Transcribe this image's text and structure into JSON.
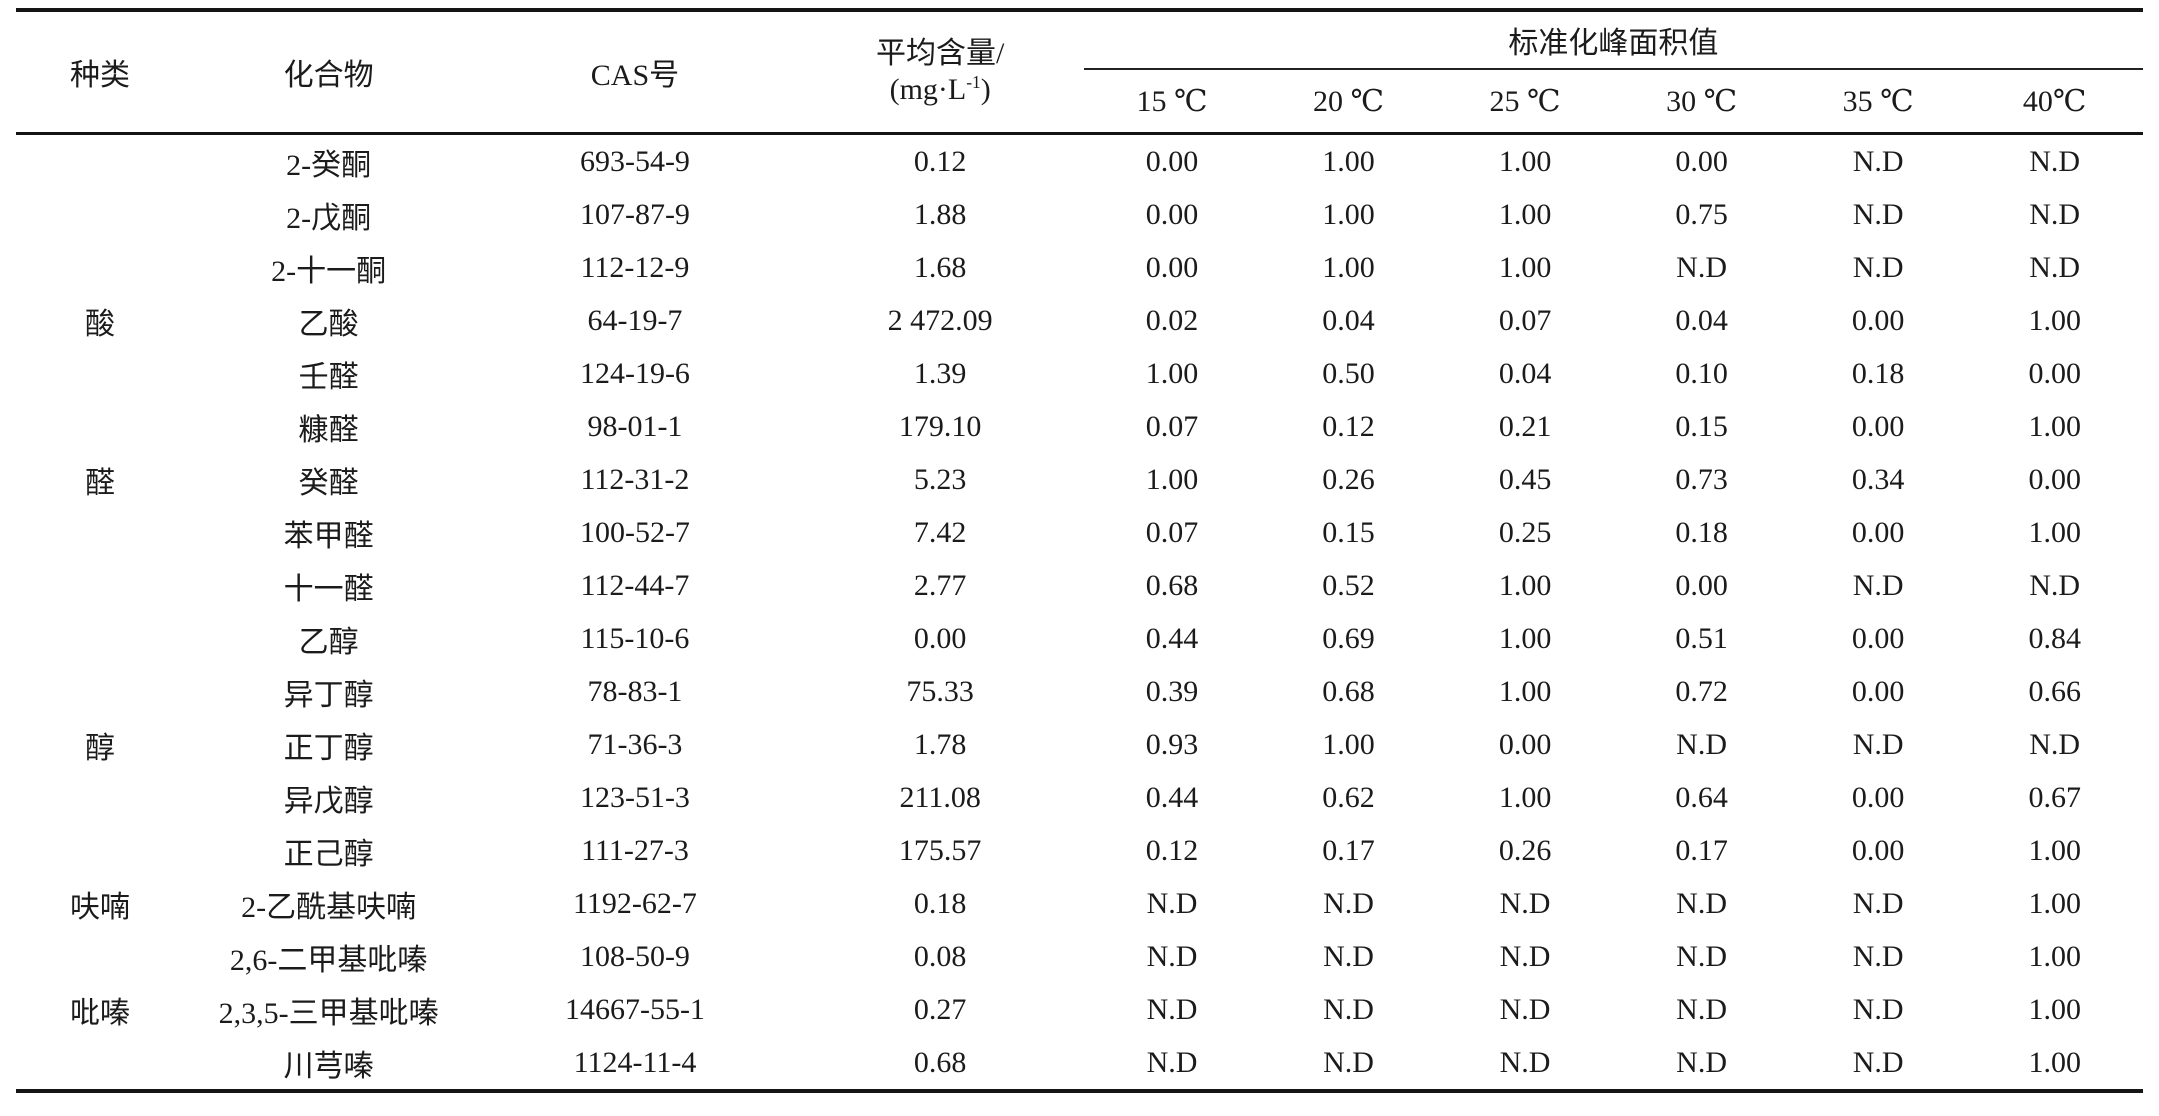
{
  "table": {
    "header": {
      "category": "种类",
      "compound": "化合物",
      "cas": "CAS号",
      "avg_line1": "平均含量/",
      "avg_unit_prefix": "(mg·L",
      "avg_unit_sup": "-1",
      "avg_unit_suffix": ")",
      "span_header": "标准化峰面积值",
      "temps": [
        "15 ℃",
        "20 ℃",
        "25 ℃",
        "30 ℃",
        "35 ℃",
        "40℃"
      ]
    },
    "rows": [
      {
        "category": "",
        "compound": "2-癸酮",
        "cas": "693-54-9",
        "avg": "0.12",
        "values": [
          "0.00",
          "1.00",
          "1.00",
          "0.00",
          "N.D",
          "N.D"
        ]
      },
      {
        "category": "",
        "compound": "2-戊酮",
        "cas": "107-87-9",
        "avg": "1.88",
        "values": [
          "0.00",
          "1.00",
          "1.00",
          "0.75",
          "N.D",
          "N.D"
        ]
      },
      {
        "category": "",
        "compound": "2-十一酮",
        "cas": "112-12-9",
        "avg": "1.68",
        "values": [
          "0.00",
          "1.00",
          "1.00",
          "N.D",
          "N.D",
          "N.D"
        ]
      },
      {
        "category": "酸",
        "compound": "乙酸",
        "cas": "64-19-7",
        "avg": "2 472.09",
        "values": [
          "0.02",
          "0.04",
          "0.07",
          "0.04",
          "0.00",
          "1.00"
        ]
      },
      {
        "category": "",
        "compound": "壬醛",
        "cas": "124-19-6",
        "avg": "1.39",
        "values": [
          "1.00",
          "0.50",
          "0.04",
          "0.10",
          "0.18",
          "0.00"
        ]
      },
      {
        "category": "",
        "compound": "糠醛",
        "cas": "98-01-1",
        "avg": "179.10",
        "values": [
          "0.07",
          "0.12",
          "0.21",
          "0.15",
          "0.00",
          "1.00"
        ]
      },
      {
        "category": "醛",
        "compound": "癸醛",
        "cas": "112-31-2",
        "avg": "5.23",
        "values": [
          "1.00",
          "0.26",
          "0.45",
          "0.73",
          "0.34",
          "0.00"
        ]
      },
      {
        "category": "",
        "compound": "苯甲醛",
        "cas": "100-52-7",
        "avg": "7.42",
        "values": [
          "0.07",
          "0.15",
          "0.25",
          "0.18",
          "0.00",
          "1.00"
        ]
      },
      {
        "category": "",
        "compound": "十一醛",
        "cas": "112-44-7",
        "avg": "2.77",
        "values": [
          "0.68",
          "0.52",
          "1.00",
          "0.00",
          "N.D",
          "N.D"
        ]
      },
      {
        "category": "",
        "compound": "乙醇",
        "cas": "115-10-6",
        "avg": "0.00",
        "values": [
          "0.44",
          "0.69",
          "1.00",
          "0.51",
          "0.00",
          "0.84"
        ]
      },
      {
        "category": "",
        "compound": "异丁醇",
        "cas": "78-83-1",
        "avg": "75.33",
        "values": [
          "0.39",
          "0.68",
          "1.00",
          "0.72",
          "0.00",
          "0.66"
        ]
      },
      {
        "category": "醇",
        "compound": "正丁醇",
        "cas": "71-36-3",
        "avg": "1.78",
        "values": [
          "0.93",
          "1.00",
          "0.00",
          "N.D",
          "N.D",
          "N.D"
        ]
      },
      {
        "category": "",
        "compound": "异戊醇",
        "cas": "123-51-3",
        "avg": "211.08",
        "values": [
          "0.44",
          "0.62",
          "1.00",
          "0.64",
          "0.00",
          "0.67"
        ]
      },
      {
        "category": "",
        "compound": "正己醇",
        "cas": "111-27-3",
        "avg": "175.57",
        "values": [
          "0.12",
          "0.17",
          "0.26",
          "0.17",
          "0.00",
          "1.00"
        ]
      },
      {
        "category": "呋喃",
        "compound": "2-乙酰基呋喃",
        "cas": "1192-62-7",
        "avg": "0.18",
        "values": [
          "N.D",
          "N.D",
          "N.D",
          "N.D",
          "N.D",
          "1.00"
        ]
      },
      {
        "category": "",
        "compound": "2,6-二甲基吡嗪",
        "cas": "108-50-9",
        "avg": "0.08",
        "values": [
          "N.D",
          "N.D",
          "N.D",
          "N.D",
          "N.D",
          "1.00"
        ]
      },
      {
        "category": "吡嗪",
        "compound": "2,3,5-三甲基吡嗪",
        "cas": "14667-55-1",
        "avg": "0.27",
        "values": [
          "N.D",
          "N.D",
          "N.D",
          "N.D",
          "N.D",
          "1.00"
        ]
      },
      {
        "category": "",
        "compound": "川芎嗪",
        "cas": "1124-11-4",
        "avg": "0.68",
        "values": [
          "N.D",
          "N.D",
          "N.D",
          "N.D",
          "N.D",
          "1.00"
        ]
      }
    ]
  }
}
